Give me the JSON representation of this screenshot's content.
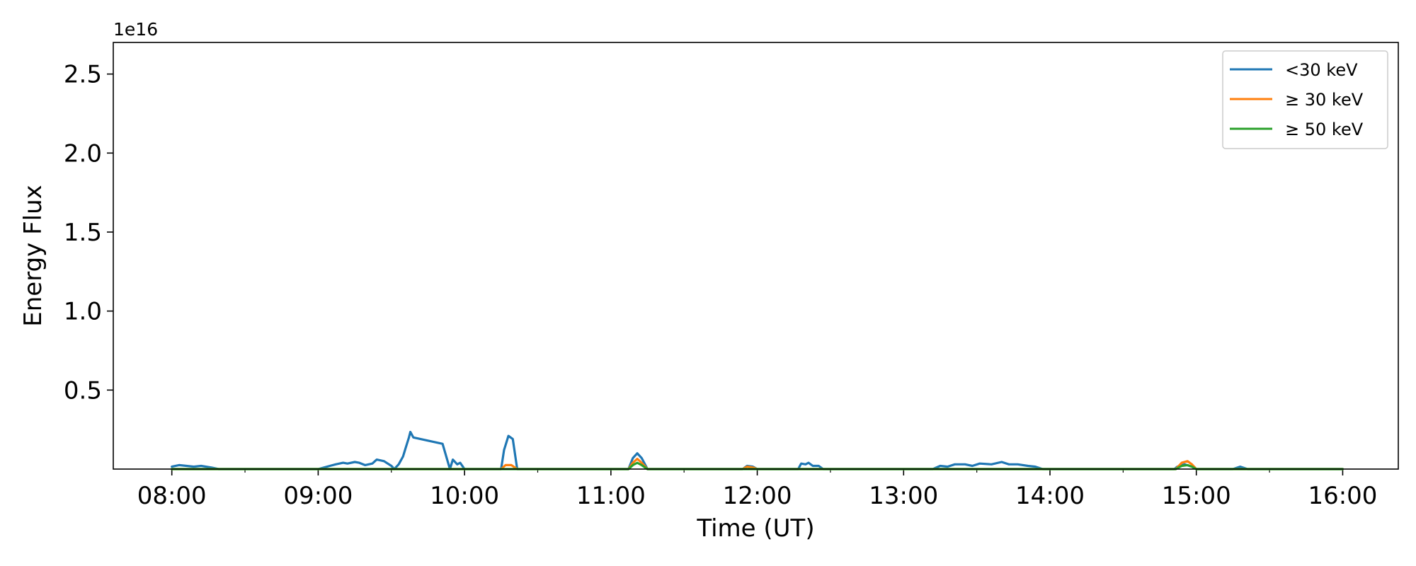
{
  "chart_data": {
    "type": "line",
    "title": "",
    "xlabel": "Time (UT)",
    "ylabel": "Energy Flux",
    "y_offset_text": "1e16",
    "xlim": [
      7.6,
      16.38
    ],
    "ylim": [
      0,
      2.7
    ],
    "x_major_ticks": [
      8,
      9,
      10,
      11,
      12,
      13,
      14,
      15,
      16
    ],
    "x_minor_ticks": [
      8.5,
      9.5,
      10.5,
      11.5,
      12.5,
      13.5,
      14.5,
      15.5
    ],
    "x_tick_labels": [
      "08:00",
      "09:00",
      "10:00",
      "11:00",
      "12:00",
      "13:00",
      "14:00",
      "15:00",
      "16:00"
    ],
    "y_ticks": [
      0.5,
      1.0,
      1.5,
      2.0,
      2.5
    ],
    "y_tick_labels": [
      "0.5",
      "1.0",
      "1.5",
      "2.0",
      "2.5"
    ],
    "grid": false,
    "legend_position": "top-right",
    "x_units": "hours UT",
    "series": [
      {
        "name": "<30 keV",
        "color": "#1f77b4",
        "points": [
          [
            8.0,
            0.015
          ],
          [
            8.05,
            0.025
          ],
          [
            8.1,
            0.02
          ],
          [
            8.15,
            0.015
          ],
          [
            8.2,
            0.02
          ],
          [
            8.27,
            0.01
          ],
          [
            8.32,
            0.0
          ],
          [
            9.0,
            0.0
          ],
          [
            9.08,
            0.02
          ],
          [
            9.12,
            0.03
          ],
          [
            9.17,
            0.04
          ],
          [
            9.2,
            0.035
          ],
          [
            9.25,
            0.045
          ],
          [
            9.28,
            0.04
          ],
          [
            9.32,
            0.025
          ],
          [
            9.37,
            0.035
          ],
          [
            9.4,
            0.06
          ],
          [
            9.45,
            0.05
          ],
          [
            9.5,
            0.02
          ],
          [
            9.52,
            0.0
          ],
          [
            9.55,
            0.03
          ],
          [
            9.58,
            0.08
          ],
          [
            9.6,
            0.14
          ],
          [
            9.62,
            0.2
          ],
          [
            9.63,
            0.235
          ],
          [
            9.65,
            0.2
          ],
          [
            9.85,
            0.16
          ],
          [
            9.9,
            0.0
          ],
          [
            9.92,
            0.06
          ],
          [
            9.95,
            0.03
          ],
          [
            9.97,
            0.04
          ],
          [
            10.0,
            0.0
          ],
          [
            10.25,
            0.0
          ],
          [
            10.27,
            0.12
          ],
          [
            10.3,
            0.21
          ],
          [
            10.33,
            0.19
          ],
          [
            10.36,
            0.0
          ],
          [
            11.12,
            0.0
          ],
          [
            11.15,
            0.07
          ],
          [
            11.18,
            0.1
          ],
          [
            11.21,
            0.07
          ],
          [
            11.25,
            0.0
          ],
          [
            11.9,
            0.0
          ],
          [
            11.93,
            0.02
          ],
          [
            11.97,
            0.015
          ],
          [
            12.0,
            0.0
          ],
          [
            12.28,
            0.0
          ],
          [
            12.3,
            0.035
          ],
          [
            12.33,
            0.03
          ],
          [
            12.35,
            0.04
          ],
          [
            12.38,
            0.02
          ],
          [
            12.42,
            0.02
          ],
          [
            12.45,
            0.0
          ],
          [
            13.2,
            0.0
          ],
          [
            13.25,
            0.02
          ],
          [
            13.3,
            0.015
          ],
          [
            13.35,
            0.03
          ],
          [
            13.42,
            0.03
          ],
          [
            13.47,
            0.02
          ],
          [
            13.52,
            0.035
          ],
          [
            13.6,
            0.03
          ],
          [
            13.67,
            0.045
          ],
          [
            13.72,
            0.03
          ],
          [
            13.78,
            0.03
          ],
          [
            13.85,
            0.02
          ],
          [
            13.9,
            0.015
          ],
          [
            13.95,
            0.0
          ],
          [
            14.85,
            0.0
          ],
          [
            14.87,
            0.015
          ],
          [
            14.92,
            0.03
          ],
          [
            14.97,
            0.015
          ],
          [
            15.0,
            0.0
          ],
          [
            15.25,
            0.0
          ],
          [
            15.3,
            0.015
          ],
          [
            15.35,
            0.0
          ],
          [
            16.0,
            0.0
          ]
        ]
      },
      {
        "name": "≥ 30 keV",
        "color": "#ff7f0e",
        "points": [
          [
            8.0,
            0.0
          ],
          [
            10.25,
            0.0
          ],
          [
            10.28,
            0.025
          ],
          [
            10.32,
            0.025
          ],
          [
            10.36,
            0.0
          ],
          [
            11.12,
            0.0
          ],
          [
            11.15,
            0.04
          ],
          [
            11.18,
            0.065
          ],
          [
            11.21,
            0.04
          ],
          [
            11.25,
            0.0
          ],
          [
            11.9,
            0.0
          ],
          [
            11.93,
            0.015
          ],
          [
            11.97,
            0.01
          ],
          [
            12.0,
            0.0
          ],
          [
            14.86,
            0.0
          ],
          [
            14.9,
            0.04
          ],
          [
            14.94,
            0.05
          ],
          [
            14.97,
            0.03
          ],
          [
            15.0,
            0.0
          ],
          [
            16.0,
            0.0
          ]
        ]
      },
      {
        "name": "≥ 50 keV",
        "color": "#2ca02c",
        "points": [
          [
            8.0,
            0.0
          ],
          [
            11.12,
            0.0
          ],
          [
            11.15,
            0.025
          ],
          [
            11.18,
            0.04
          ],
          [
            11.21,
            0.025
          ],
          [
            11.25,
            0.0
          ],
          [
            14.86,
            0.0
          ],
          [
            14.9,
            0.02
          ],
          [
            14.94,
            0.025
          ],
          [
            14.97,
            0.015
          ],
          [
            15.0,
            0.0
          ],
          [
            16.0,
            0.0
          ]
        ]
      }
    ]
  }
}
